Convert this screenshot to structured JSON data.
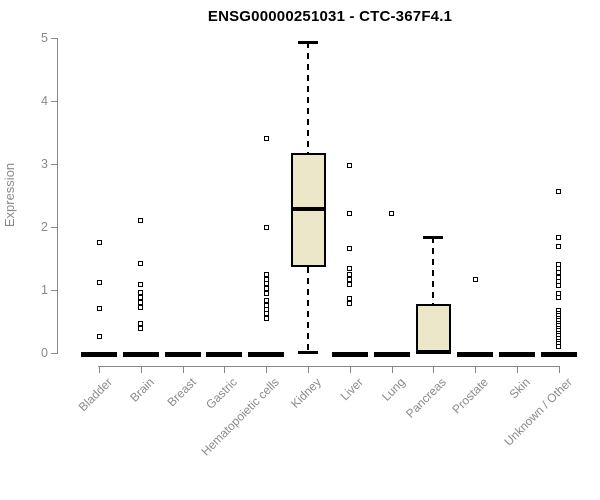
{
  "colors": {
    "background": "#ffffff",
    "box_fill": "#ece7c9",
    "box_border": "#000000",
    "point": "#000000",
    "axis": "#888888",
    "axis_text": "#8a8a8a",
    "title_text": "#000000"
  },
  "chart_data": {
    "type": "boxplot",
    "title": "ENSG00000251031 - CTC-367F4.1",
    "xlabel": "",
    "ylabel": "Expression",
    "ylim": [
      0,
      5
    ],
    "yticks": [
      0,
      1,
      2,
      3,
      4,
      5
    ],
    "grid": false,
    "legend": false,
    "categories": [
      "Bladder",
      "Brain",
      "Breast",
      "Gastric",
      "Hematopoietic cells",
      "Kidney",
      "Liver",
      "Lung",
      "Pancreas",
      "Prostate",
      "Skin",
      "Unknown / Other"
    ],
    "boxes": [
      {
        "category": "Bladder",
        "q1": 0,
        "median": 0,
        "q3": 0,
        "whisker_low": 0,
        "whisker_high": 0,
        "outliers": [
          1.76,
          1.12,
          0.7,
          0.26
        ]
      },
      {
        "category": "Brain",
        "q1": 0,
        "median": 0,
        "q3": 0,
        "whisker_low": 0,
        "whisker_high": 0,
        "outliers": [
          2.1,
          1.42,
          1.08,
          0.96,
          0.88,
          0.8,
          0.72,
          0.47,
          0.39
        ]
      },
      {
        "category": "Breast",
        "q1": 0,
        "median": 0,
        "q3": 0,
        "whisker_low": 0,
        "whisker_high": 0,
        "outliers": []
      },
      {
        "category": "Gastric",
        "q1": 0,
        "median": 0,
        "q3": 0,
        "whisker_low": 0,
        "whisker_high": 0,
        "outliers": []
      },
      {
        "category": "Hematopoietic cells",
        "q1": 0,
        "median": 0,
        "q3": 0,
        "whisker_low": 0,
        "whisker_high": 0,
        "outliers": [
          3.4,
          2.0,
          1.24,
          1.17,
          1.1,
          1.02,
          0.95,
          0.83,
          0.76,
          0.69,
          0.62,
          0.55
        ]
      },
      {
        "category": "Kidney",
        "q1": 1.37,
        "median": 2.28,
        "q3": 3.17,
        "whisker_low": 0.02,
        "whisker_high": 4.94,
        "outliers": []
      },
      {
        "category": "Liver",
        "q1": 0,
        "median": 0,
        "q3": 0,
        "whisker_low": 0,
        "whisker_high": 0,
        "outliers": [
          2.98,
          2.21,
          1.66,
          1.34,
          1.25,
          1.17,
          1.08,
          0.86,
          0.78
        ]
      },
      {
        "category": "Lung",
        "q1": 0,
        "median": 0,
        "q3": 0,
        "whisker_low": 0,
        "whisker_high": 0,
        "outliers": [
          2.21
        ]
      },
      {
        "category": "Pancreas",
        "q1": 0,
        "median": 0.02,
        "q3": 0.78,
        "whisker_low": 0,
        "whisker_high": 1.84,
        "outliers": []
      },
      {
        "category": "Prostate",
        "q1": 0,
        "median": 0,
        "q3": 0,
        "whisker_low": 0,
        "whisker_high": 0,
        "outliers": [
          1.16
        ]
      },
      {
        "category": "Skin",
        "q1": 0,
        "median": 0,
        "q3": 0,
        "whisker_low": 0,
        "whisker_high": 0,
        "outliers": []
      },
      {
        "category": "Unknown / Other",
        "q1": 0,
        "median": 0,
        "q3": 0,
        "whisker_low": 0,
        "whisker_high": 0,
        "outliers": [
          2.56,
          1.83,
          1.69,
          1.41,
          1.34,
          1.27,
          1.2,
          1.13,
          1.07,
          0.94,
          0.88,
          0.67,
          0.63,
          0.59,
          0.55,
          0.51,
          0.47,
          0.43,
          0.39,
          0.35,
          0.31,
          0.27,
          0.23,
          0.19,
          0.15,
          0.11
        ]
      }
    ]
  }
}
